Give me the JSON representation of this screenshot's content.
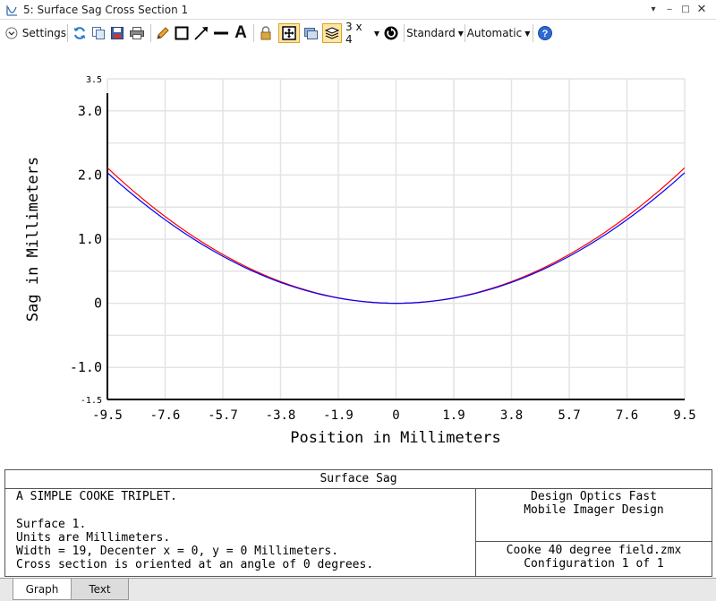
{
  "window": {
    "title": "5: Surface Sag Cross Section 1"
  },
  "toolbar": {
    "settings_label": "Settings",
    "grid_label": "3 x 4",
    "standard_label": "Standard",
    "automatic_label": "Automatic",
    "icons": [
      "refresh-icon",
      "copy-icon",
      "save-icon",
      "print-icon",
      "pencil-icon",
      "rectangle-icon",
      "arrow-icon",
      "line-icon",
      "text-icon",
      "lock-icon",
      "fit-icon",
      "window-icon",
      "layers-icon",
      "clock-icon",
      "help-icon"
    ]
  },
  "chart_data": {
    "type": "line",
    "xlabel": "Position in Millimeters",
    "ylabel": "Sag in Millimeters",
    "xlim": [
      -9.5,
      9.5
    ],
    "ylim": [
      -1.5,
      3.5
    ],
    "x_ticks": [
      "-9.5",
      "-7.6",
      "-5.7",
      "-3.8",
      "-1.9",
      "0",
      "1.9",
      "3.8",
      "5.7",
      "7.6",
      "9.5"
    ],
    "y_ticks": [
      {
        "value": 3.5,
        "label": "3.5"
      },
      {
        "value": 3.0,
        "label": "3.0"
      },
      {
        "value": 2.0,
        "label": "2.0"
      },
      {
        "value": 1.0,
        "label": "1.0"
      },
      {
        "value": 0,
        "label": "0"
      },
      {
        "value": -1.0,
        "label": "-1.0"
      },
      {
        "value": -1.5,
        "label": "-1.5"
      }
    ],
    "grid": true,
    "series": [
      {
        "color": "#0000ff",
        "x": [
          -9.5,
          -7.6,
          -5.7,
          -3.8,
          -1.9,
          0,
          1.9,
          3.8,
          5.7,
          7.6,
          9.5
        ],
        "y": [
          2.04,
          1.3,
          0.73,
          0.32,
          0.08,
          0,
          0.08,
          0.32,
          0.73,
          1.3,
          2.04
        ]
      },
      {
        "color": "#ff0000",
        "x": [
          -9.5,
          -7.6,
          -5.7,
          -3.8,
          -1.9,
          0,
          1.9,
          3.8,
          5.7,
          7.6,
          9.5
        ],
        "y": [
          2.13,
          1.34,
          0.74,
          0.33,
          0.08,
          0,
          0.08,
          0.33,
          0.74,
          1.34,
          2.13
        ]
      }
    ]
  },
  "info": {
    "heading": "Surface Sag",
    "left_lines": [
      "A SIMPLE COOKE TRIPLET.",
      "",
      "Surface 1.",
      "Units are Millimeters.",
      "Width = 19, Decenter x = 0, y = 0 Millimeters.",
      "Cross section is oriented at an angle of 0 degrees."
    ],
    "right_top": [
      "Design Optics Fast",
      "Mobile Imager Design"
    ],
    "right_bottom": [
      "Cooke 40 degree field.zmx",
      "Configuration 1 of 1"
    ]
  },
  "tabs": [
    {
      "label": "Graph",
      "active": true
    },
    {
      "label": "Text",
      "active": false
    }
  ]
}
